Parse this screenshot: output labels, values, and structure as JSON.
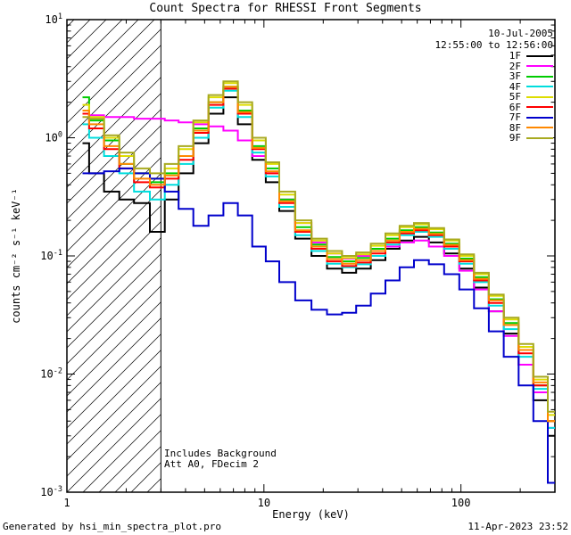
{
  "annotations": {
    "date": "10-Jul-2005",
    "time_range": "12:55:00 to 12:56:00",
    "background_note": "Includes Background",
    "attenuator_note": "Att A0, FDecim 2"
  },
  "footer": {
    "left": "Generated by hsi_min_spectra_plot.pro",
    "right": "11-Apr-2023 23:52"
  },
  "chart_data": {
    "type": "line",
    "title": "Count Spectra for RHESSI Front Segments",
    "xlabel": "Energy (keV)",
    "ylabel": "counts cm⁻² s⁻¹ keV⁻¹",
    "xscale": "log",
    "yscale": "log",
    "xlim": [
      1,
      300
    ],
    "ylim": [
      0.001,
      10
    ],
    "x_ticks": [
      1,
      10,
      100
    ],
    "y_ticks": [
      10,
      1,
      0.1,
      0.01,
      0.001
    ],
    "grid": false,
    "legend_position": "top-right-inside",
    "line_style": "histogram-step",
    "hatched_region_x": [
      1,
      3
    ],
    "x": [
      1.2,
      1.4,
      1.7,
      2.0,
      2.4,
      2.9,
      3.4,
      4.0,
      4.8,
      5.7,
      6.8,
      8.0,
      9.5,
      11,
      13,
      16,
      19,
      23,
      27,
      32,
      38,
      45,
      53,
      63,
      75,
      90,
      107,
      127,
      151,
      180,
      214,
      254,
      300
    ],
    "series": [
      {
        "name": "1F",
        "color": "#000000",
        "values": [
          0.9,
          0.5,
          0.35,
          0.3,
          0.28,
          0.16,
          0.3,
          0.5,
          0.9,
          1.6,
          2.2,
          1.3,
          0.65,
          0.42,
          0.24,
          0.14,
          0.1,
          0.078,
          0.072,
          0.078,
          0.092,
          0.115,
          0.135,
          0.145,
          0.13,
          0.105,
          0.078,
          0.054,
          0.034,
          0.022,
          0.012,
          0.006,
          0.003
        ]
      },
      {
        "name": "2F",
        "color": "#ff00ff",
        "values": [
          1.6,
          1.55,
          1.5,
          1.5,
          1.45,
          1.45,
          1.4,
          1.35,
          1.3,
          1.25,
          1.15,
          0.95,
          0.7,
          0.5,
          0.3,
          0.19,
          0.13,
          0.105,
          0.095,
          0.1,
          0.11,
          0.12,
          0.13,
          0.135,
          0.12,
          0.1,
          0.075,
          0.052,
          0.034,
          0.021,
          0.012,
          0.007,
          0.0035
        ]
      },
      {
        "name": "3F",
        "color": "#00cc00",
        "values": [
          2.2,
          1.4,
          0.95,
          0.6,
          0.5,
          0.42,
          0.5,
          0.7,
          1.2,
          2.0,
          2.7,
          1.7,
          0.85,
          0.55,
          0.3,
          0.175,
          0.125,
          0.098,
          0.09,
          0.096,
          0.115,
          0.14,
          0.165,
          0.175,
          0.158,
          0.127,
          0.095,
          0.066,
          0.043,
          0.027,
          0.016,
          0.008,
          0.004
        ]
      },
      {
        "name": "4F",
        "color": "#00dddd",
        "values": [
          1.3,
          1.0,
          0.7,
          0.5,
          0.35,
          0.3,
          0.4,
          0.6,
          1.0,
          1.8,
          2.5,
          1.5,
          0.75,
          0.47,
          0.26,
          0.15,
          0.11,
          0.086,
          0.08,
          0.085,
          0.1,
          0.125,
          0.15,
          0.16,
          0.145,
          0.115,
          0.086,
          0.06,
          0.038,
          0.024,
          0.014,
          0.0075,
          0.0035
        ]
      },
      {
        "name": "5F",
        "color": "#dddd00",
        "values": [
          1.9,
          1.5,
          1.0,
          0.7,
          0.5,
          0.45,
          0.55,
          0.8,
          1.35,
          2.2,
          2.9,
          1.9,
          0.95,
          0.6,
          0.33,
          0.19,
          0.135,
          0.105,
          0.096,
          0.103,
          0.122,
          0.15,
          0.175,
          0.185,
          0.168,
          0.135,
          0.1,
          0.07,
          0.046,
          0.029,
          0.017,
          0.009,
          0.0045
        ]
      },
      {
        "name": "6F",
        "color": "#ff0000",
        "values": [
          1.6,
          1.2,
          0.8,
          0.55,
          0.42,
          0.38,
          0.45,
          0.65,
          1.1,
          1.9,
          2.6,
          1.6,
          0.8,
          0.5,
          0.28,
          0.16,
          0.115,
          0.09,
          0.082,
          0.088,
          0.105,
          0.13,
          0.155,
          0.165,
          0.15,
          0.12,
          0.09,
          0.062,
          0.04,
          0.026,
          0.015,
          0.008,
          0.004
        ]
      },
      {
        "name": "7F",
        "color": "#0000cc",
        "values": [
          0.5,
          0.5,
          0.52,
          0.55,
          0.5,
          0.45,
          0.35,
          0.25,
          0.18,
          0.22,
          0.28,
          0.22,
          0.12,
          0.09,
          0.06,
          0.042,
          0.035,
          0.032,
          0.033,
          0.038,
          0.048,
          0.062,
          0.08,
          0.092,
          0.085,
          0.07,
          0.052,
          0.036,
          0.023,
          0.014,
          0.008,
          0.004,
          0.0012
        ]
      },
      {
        "name": "8F",
        "color": "#ff8800",
        "values": [
          1.7,
          1.3,
          0.85,
          0.6,
          0.45,
          0.4,
          0.48,
          0.7,
          1.15,
          2.0,
          2.7,
          1.65,
          0.82,
          0.52,
          0.29,
          0.165,
          0.12,
          0.094,
          0.086,
          0.092,
          0.11,
          0.135,
          0.16,
          0.17,
          0.154,
          0.124,
          0.092,
          0.064,
          0.042,
          0.026,
          0.016,
          0.0085,
          0.004
        ]
      },
      {
        "name": "9F",
        "color": "#a8aa20",
        "values": [
          1.5,
          1.45,
          1.05,
          0.75,
          0.55,
          0.5,
          0.6,
          0.85,
          1.4,
          2.3,
          3.0,
          2.0,
          1.0,
          0.62,
          0.35,
          0.2,
          0.14,
          0.11,
          0.1,
          0.107,
          0.127,
          0.155,
          0.18,
          0.19,
          0.172,
          0.138,
          0.103,
          0.072,
          0.047,
          0.03,
          0.018,
          0.0095,
          0.0048
        ]
      }
    ]
  }
}
